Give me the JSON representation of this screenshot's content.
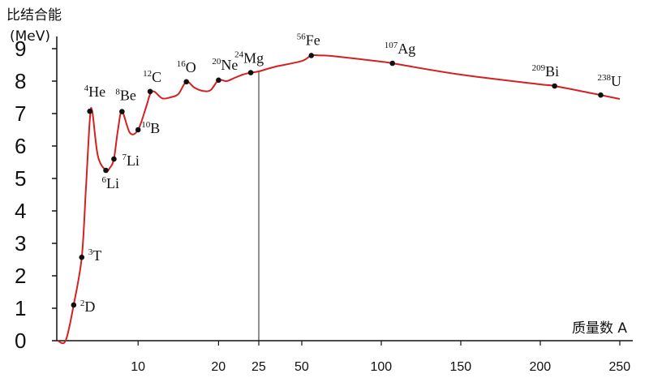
{
  "chart_data": {
    "type": "line",
    "ylabel_line1": "比结合能",
    "ylabel_line2": "(MeV)",
    "xlabel": "质量数 A",
    "ylim": [
      0,
      9
    ],
    "y_ticks": [
      "0",
      "1",
      "2",
      "3",
      "4",
      "5",
      "6",
      "7",
      "8",
      "9"
    ],
    "x_scale_note": "broken axis: 0–25 expanded, 25–250 compressed",
    "x_ticks": [
      "10",
      "20",
      "25",
      "50",
      "100",
      "150",
      "200",
      "250"
    ],
    "x_tick_values": [
      10,
      20,
      25,
      50,
      100,
      150,
      200,
      250
    ],
    "line_color": "#d42020",
    "curve": {
      "x": [
        0,
        1,
        2,
        3,
        3.5,
        4,
        4.3,
        5,
        6,
        6.5,
        7,
        7.5,
        8,
        9,
        10,
        11,
        11.5,
        12,
        13,
        14,
        15,
        16,
        17,
        18,
        19,
        20,
        21,
        22,
        23,
        24,
        25,
        35,
        50,
        56,
        62,
        70,
        100,
        107,
        150,
        200,
        209,
        238,
        250
      ],
      "y": [
        0,
        0,
        1.1,
        2.57,
        4.6,
        6.8,
        7.07,
        5.7,
        5.25,
        5.33,
        5.6,
        6.5,
        7.06,
        6.4,
        6.5,
        7.2,
        7.6,
        7.68,
        7.47,
        7.5,
        7.6,
        7.98,
        7.8,
        7.7,
        7.72,
        8.03,
        8.0,
        8.1,
        8.2,
        8.26,
        8.3,
        8.45,
        8.62,
        8.79,
        8.79,
        8.77,
        8.6,
        8.55,
        8.2,
        7.9,
        7.85,
        7.57,
        7.45
      ]
    },
    "points": [
      {
        "mass": "2",
        "symbol": "D",
        "x": 2,
        "y": 1.1
      },
      {
        "mass": "3",
        "symbol": "T",
        "x": 3,
        "y": 2.57
      },
      {
        "mass": "4",
        "symbol": "He",
        "x": 4,
        "y": 7.07
      },
      {
        "mass": "6",
        "symbol": "Li",
        "x": 6,
        "y": 5.25
      },
      {
        "mass": "7",
        "symbol": "Li",
        "x": 7,
        "y": 5.6
      },
      {
        "mass": "8",
        "symbol": "Be",
        "x": 8,
        "y": 7.06
      },
      {
        "mass": "10",
        "symbol": "B",
        "x": 10,
        "y": 6.5
      },
      {
        "mass": "12",
        "symbol": "C",
        "x": 11.5,
        "y": 7.68
      },
      {
        "mass": "16",
        "symbol": "O",
        "x": 16,
        "y": 7.98
      },
      {
        "mass": "20",
        "symbol": "Ne",
        "x": 20,
        "y": 8.03
      },
      {
        "mass": "24",
        "symbol": "Mg",
        "x": 24,
        "y": 8.26
      },
      {
        "mass": "56",
        "symbol": "Fe",
        "x": 56,
        "y": 8.79
      },
      {
        "mass": "107",
        "symbol": "Ag",
        "x": 107,
        "y": 8.55
      },
      {
        "mass": "209",
        "symbol": "Bi",
        "x": 209,
        "y": 7.85
      },
      {
        "mass": "238",
        "symbol": "U",
        "x": 238,
        "y": 7.57
      }
    ]
  }
}
